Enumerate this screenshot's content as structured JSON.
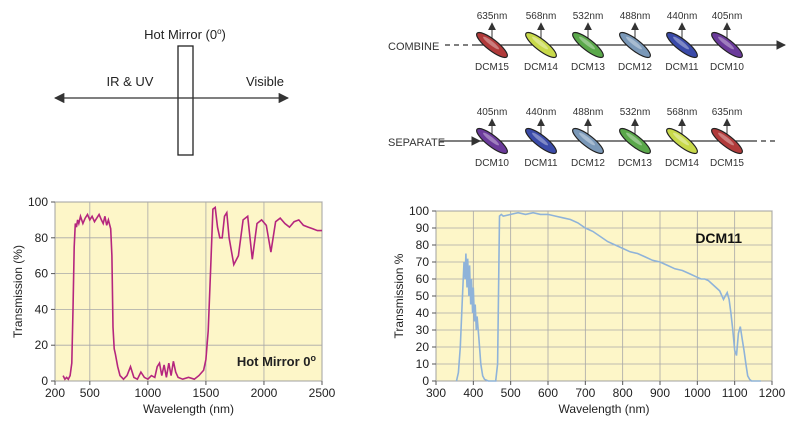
{
  "hot_mirror_diagram": {
    "title": "Hot Mirror (0",
    "title_sup": "o",
    "title_close": ")",
    "left_label": "IR & UV",
    "right_label": "Visible"
  },
  "combine_diagram": {
    "label": "COMBINE",
    "filters": [
      {
        "wavelength": "635nm",
        "name": "DCM15",
        "color": "#b03a3a"
      },
      {
        "wavelength": "568nm",
        "name": "DCM14",
        "color": "#c8d94a"
      },
      {
        "wavelength": "532nm",
        "name": "DCM13",
        "color": "#5aa84a"
      },
      {
        "wavelength": "488nm",
        "name": "DCM12",
        "color": "#7a98b8"
      },
      {
        "wavelength": "440nm",
        "name": "DCM11",
        "color": "#3a4aa8"
      },
      {
        "wavelength": "405nm",
        "name": "DCM10",
        "color": "#6a3a9a"
      }
    ]
  },
  "separate_diagram": {
    "label": "SEPARATE",
    "filters": [
      {
        "wavelength": "405nm",
        "name": "DCM10",
        "color": "#6a3a9a"
      },
      {
        "wavelength": "440nm",
        "name": "DCM11",
        "color": "#3a4aa8"
      },
      {
        "wavelength": "488nm",
        "name": "DCM12",
        "color": "#7a98b8"
      },
      {
        "wavelength": "532nm",
        "name": "DCM13",
        "color": "#5aa84a"
      },
      {
        "wavelength": "568nm",
        "name": "DCM14",
        "color": "#c8d94a"
      },
      {
        "wavelength": "635nm",
        "name": "DCM15",
        "color": "#b03a3a"
      }
    ]
  },
  "chart_data": [
    {
      "type": "line",
      "annotation": "Hot Mirror 0",
      "annotation_sup": "o",
      "xlabel": "Wavelength (nm)",
      "ylabel": "Transmission (%)",
      "xlim": [
        200,
        2500
      ],
      "ylim": [
        0,
        100
      ],
      "x_ticks": [
        "200",
        "500",
        "1000",
        "1500",
        "2000",
        "2500"
      ],
      "x_tick_values": [
        200,
        500,
        1000,
        1500,
        2000,
        2500
      ],
      "y_ticks": [
        "0",
        "20",
        "40",
        "60",
        "80",
        "100"
      ],
      "y_tick_values": [
        0,
        20,
        40,
        60,
        80,
        100
      ],
      "grid": true,
      "line_color": "#b5267e",
      "series": [
        {
          "x": [
            270,
            285,
            300,
            315,
            330,
            345,
            355,
            365,
            375,
            385,
            395,
            405,
            420,
            440,
            460,
            480,
            500,
            520,
            540,
            560,
            580,
            600,
            615,
            630,
            645,
            660,
            680,
            690,
            700,
            710,
            720,
            740,
            760,
            790,
            820,
            850,
            880,
            910,
            940,
            970,
            1000,
            1030,
            1060,
            1080,
            1100,
            1120,
            1140,
            1160,
            1180,
            1200,
            1220,
            1240,
            1260,
            1300,
            1350,
            1400,
            1440,
            1480,
            1500,
            1520,
            1540,
            1560,
            1580,
            1600,
            1620,
            1640,
            1660,
            1680,
            1700,
            1740,
            1780,
            1820,
            1860,
            1900,
            1940,
            1980,
            2020,
            2060,
            2100,
            2140,
            2180,
            2220,
            2260,
            2300,
            2340,
            2380,
            2420,
            2460,
            2500
          ],
          "y": [
            3,
            1,
            2,
            1,
            3,
            10,
            40,
            75,
            88,
            86,
            90,
            88,
            92,
            88,
            91,
            93,
            90,
            92,
            89,
            91,
            93,
            90,
            88,
            92,
            87,
            90,
            85,
            70,
            30,
            18,
            15,
            8,
            3,
            1,
            3,
            8,
            2,
            1,
            5,
            2,
            1,
            3,
            2,
            8,
            10,
            3,
            9,
            2,
            10,
            3,
            11,
            5,
            2,
            1,
            2,
            1,
            3,
            6,
            12,
            28,
            62,
            96,
            97,
            86,
            80,
            80,
            92,
            94,
            80,
            65,
            70,
            90,
            92,
            68,
            88,
            90,
            87,
            72,
            89,
            91,
            88,
            86,
            89,
            90,
            87,
            86,
            85,
            84,
            84
          ]
        }
      ]
    },
    {
      "type": "line",
      "title": "DCM11",
      "xlabel": "Wavelength (nm)",
      "ylabel": "Transmission %",
      "xlim": [
        300,
        1200
      ],
      "ylim": [
        0,
        100
      ],
      "x_ticks": [
        "300",
        "400",
        "500",
        "600",
        "700",
        "800",
        "900",
        "1000",
        "1100",
        "1200"
      ],
      "x_tick_values": [
        300,
        400,
        500,
        600,
        700,
        800,
        900,
        1000,
        1100,
        1200
      ],
      "y_ticks": [
        "0",
        "10",
        "20",
        "30",
        "40",
        "50",
        "60",
        "70",
        "80",
        "90",
        "100"
      ],
      "y_tick_values": [
        0,
        10,
        20,
        30,
        40,
        50,
        60,
        70,
        80,
        90,
        100
      ],
      "grid": true,
      "line_color": "#8fb3d9",
      "series": [
        {
          "x": [
            355,
            360,
            365,
            370,
            375,
            378,
            380,
            383,
            385,
            388,
            390,
            393,
            395,
            398,
            400,
            403,
            405,
            408,
            410,
            415,
            420,
            425,
            430,
            440,
            450,
            460,
            465,
            468,
            470,
            475,
            480,
            500,
            520,
            540,
            560,
            580,
            600,
            620,
            640,
            660,
            680,
            700,
            720,
            740,
            760,
            780,
            800,
            820,
            840,
            860,
            880,
            900,
            920,
            940,
            960,
            980,
            1000,
            1010,
            1020,
            1030,
            1040,
            1050,
            1060,
            1070,
            1075,
            1080,
            1085,
            1090,
            1095,
            1100,
            1105,
            1110,
            1115,
            1120,
            1125,
            1130,
            1135,
            1140,
            1145,
            1150,
            1160,
            1170
          ],
          "y": [
            0,
            5,
            20,
            45,
            70,
            60,
            75,
            55,
            72,
            50,
            68,
            45,
            60,
            40,
            55,
            35,
            45,
            30,
            38,
            25,
            10,
            3,
            1,
            0,
            0,
            0,
            10,
            60,
            97,
            98,
            97,
            98,
            99,
            98,
            99,
            98,
            98,
            97,
            96,
            95,
            93,
            90,
            88,
            85,
            82,
            80,
            78,
            76,
            75,
            73,
            71,
            70,
            68,
            66,
            65,
            63,
            61,
            60,
            60,
            59,
            57,
            55,
            53,
            48,
            50,
            52,
            48,
            40,
            30,
            18,
            15,
            28,
            32,
            25,
            18,
            10,
            3,
            1,
            0,
            0,
            0,
            0
          ]
        }
      ]
    }
  ]
}
